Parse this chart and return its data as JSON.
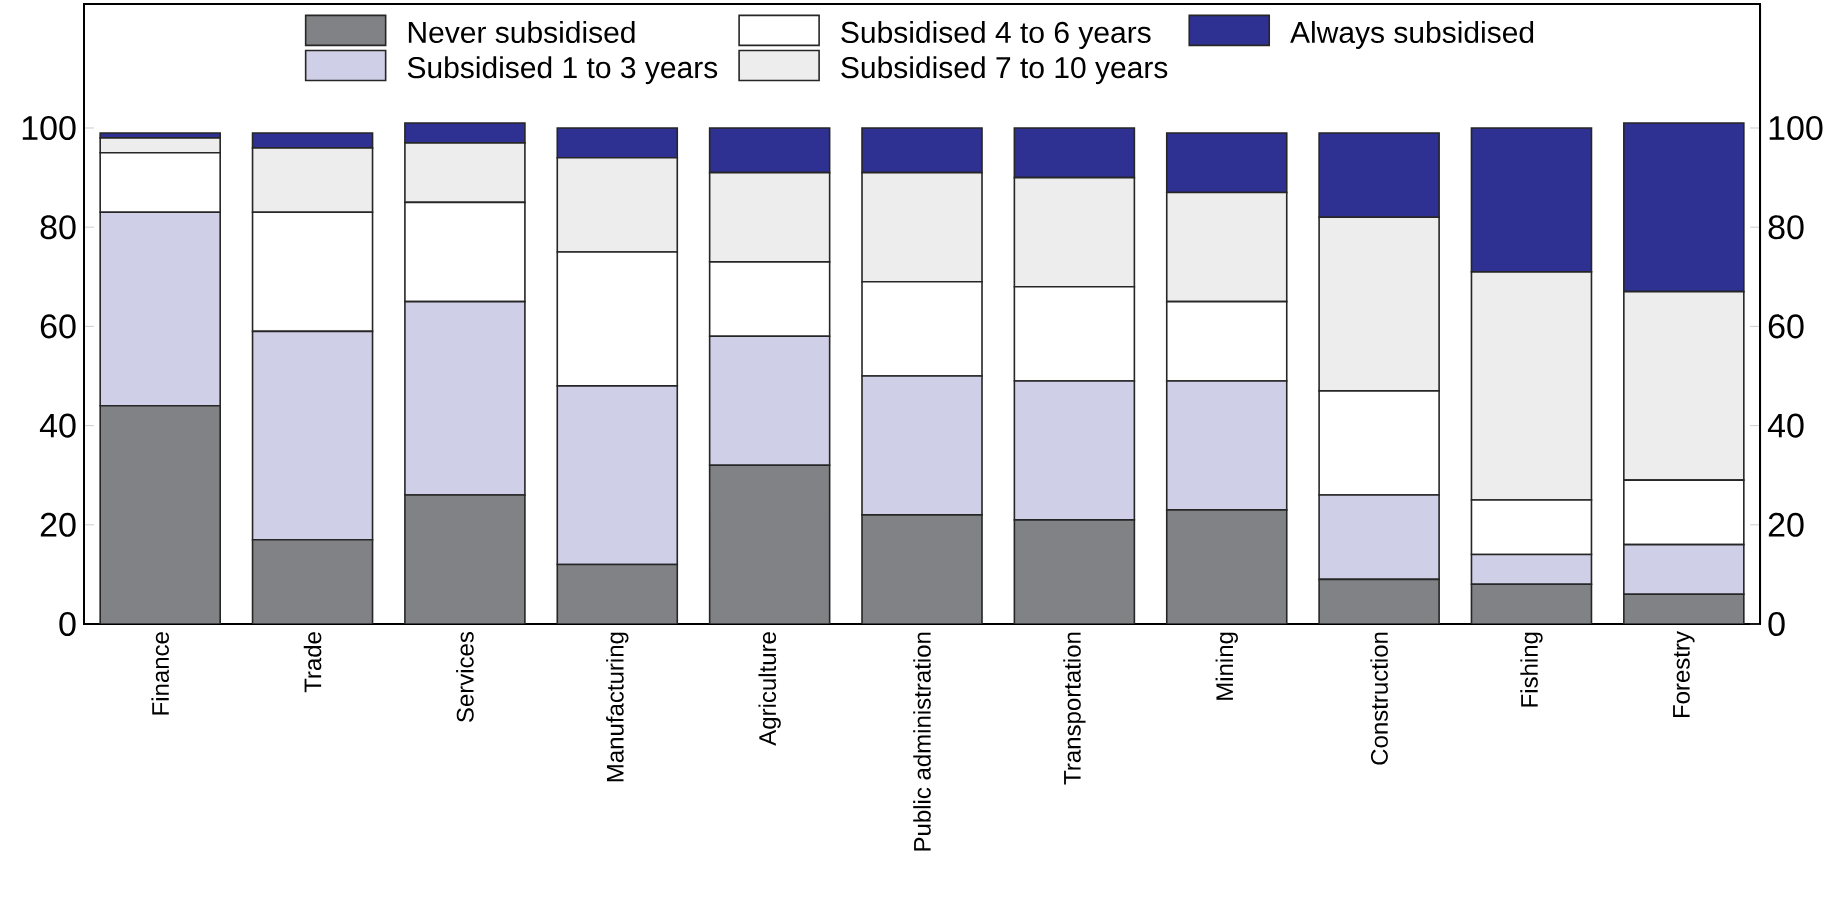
{
  "chart_data": {
    "type": "bar",
    "stacked": true,
    "categories": [
      "Finance",
      "Trade",
      "Services",
      "Manufacturing",
      "Agriculture",
      "Public administration",
      "Transportation",
      "Mining",
      "Construction",
      "Fishing",
      "Forestry"
    ],
    "series": [
      {
        "name": "Never subsidised",
        "color": "#808285",
        "values": [
          44,
          17,
          26,
          12,
          32,
          22,
          21,
          23,
          9,
          8,
          6
        ]
      },
      {
        "name": "Subsidised 1 to 3 years",
        "color": "#d0cfe8",
        "values": [
          39,
          42,
          39,
          36,
          26,
          28,
          28,
          26,
          17,
          6,
          10
        ]
      },
      {
        "name": "Subsidised 4 to 6 years",
        "color": "#ffffff",
        "values": [
          12,
          24,
          20,
          27,
          15,
          19,
          19,
          16,
          21,
          11,
          13
        ]
      },
      {
        "name": "Subsidised 7 to 10 years",
        "color": "#ededed",
        "values": [
          3,
          13,
          12,
          19,
          18,
          22,
          22,
          22,
          35,
          46,
          38
        ]
      },
      {
        "name": "Always subsidised",
        "color": "#2e3192",
        "values": [
          1,
          3,
          4,
          6,
          9,
          9,
          10,
          12,
          17,
          29,
          34
        ]
      }
    ],
    "ylim": [
      0,
      125
    ],
    "yticks": [
      0,
      20,
      40,
      60,
      80,
      100
    ],
    "y2lim": [
      0,
      125
    ],
    "y2ticks": [
      0,
      20,
      40,
      60,
      80,
      100
    ],
    "legend": "top",
    "grid": false
  }
}
